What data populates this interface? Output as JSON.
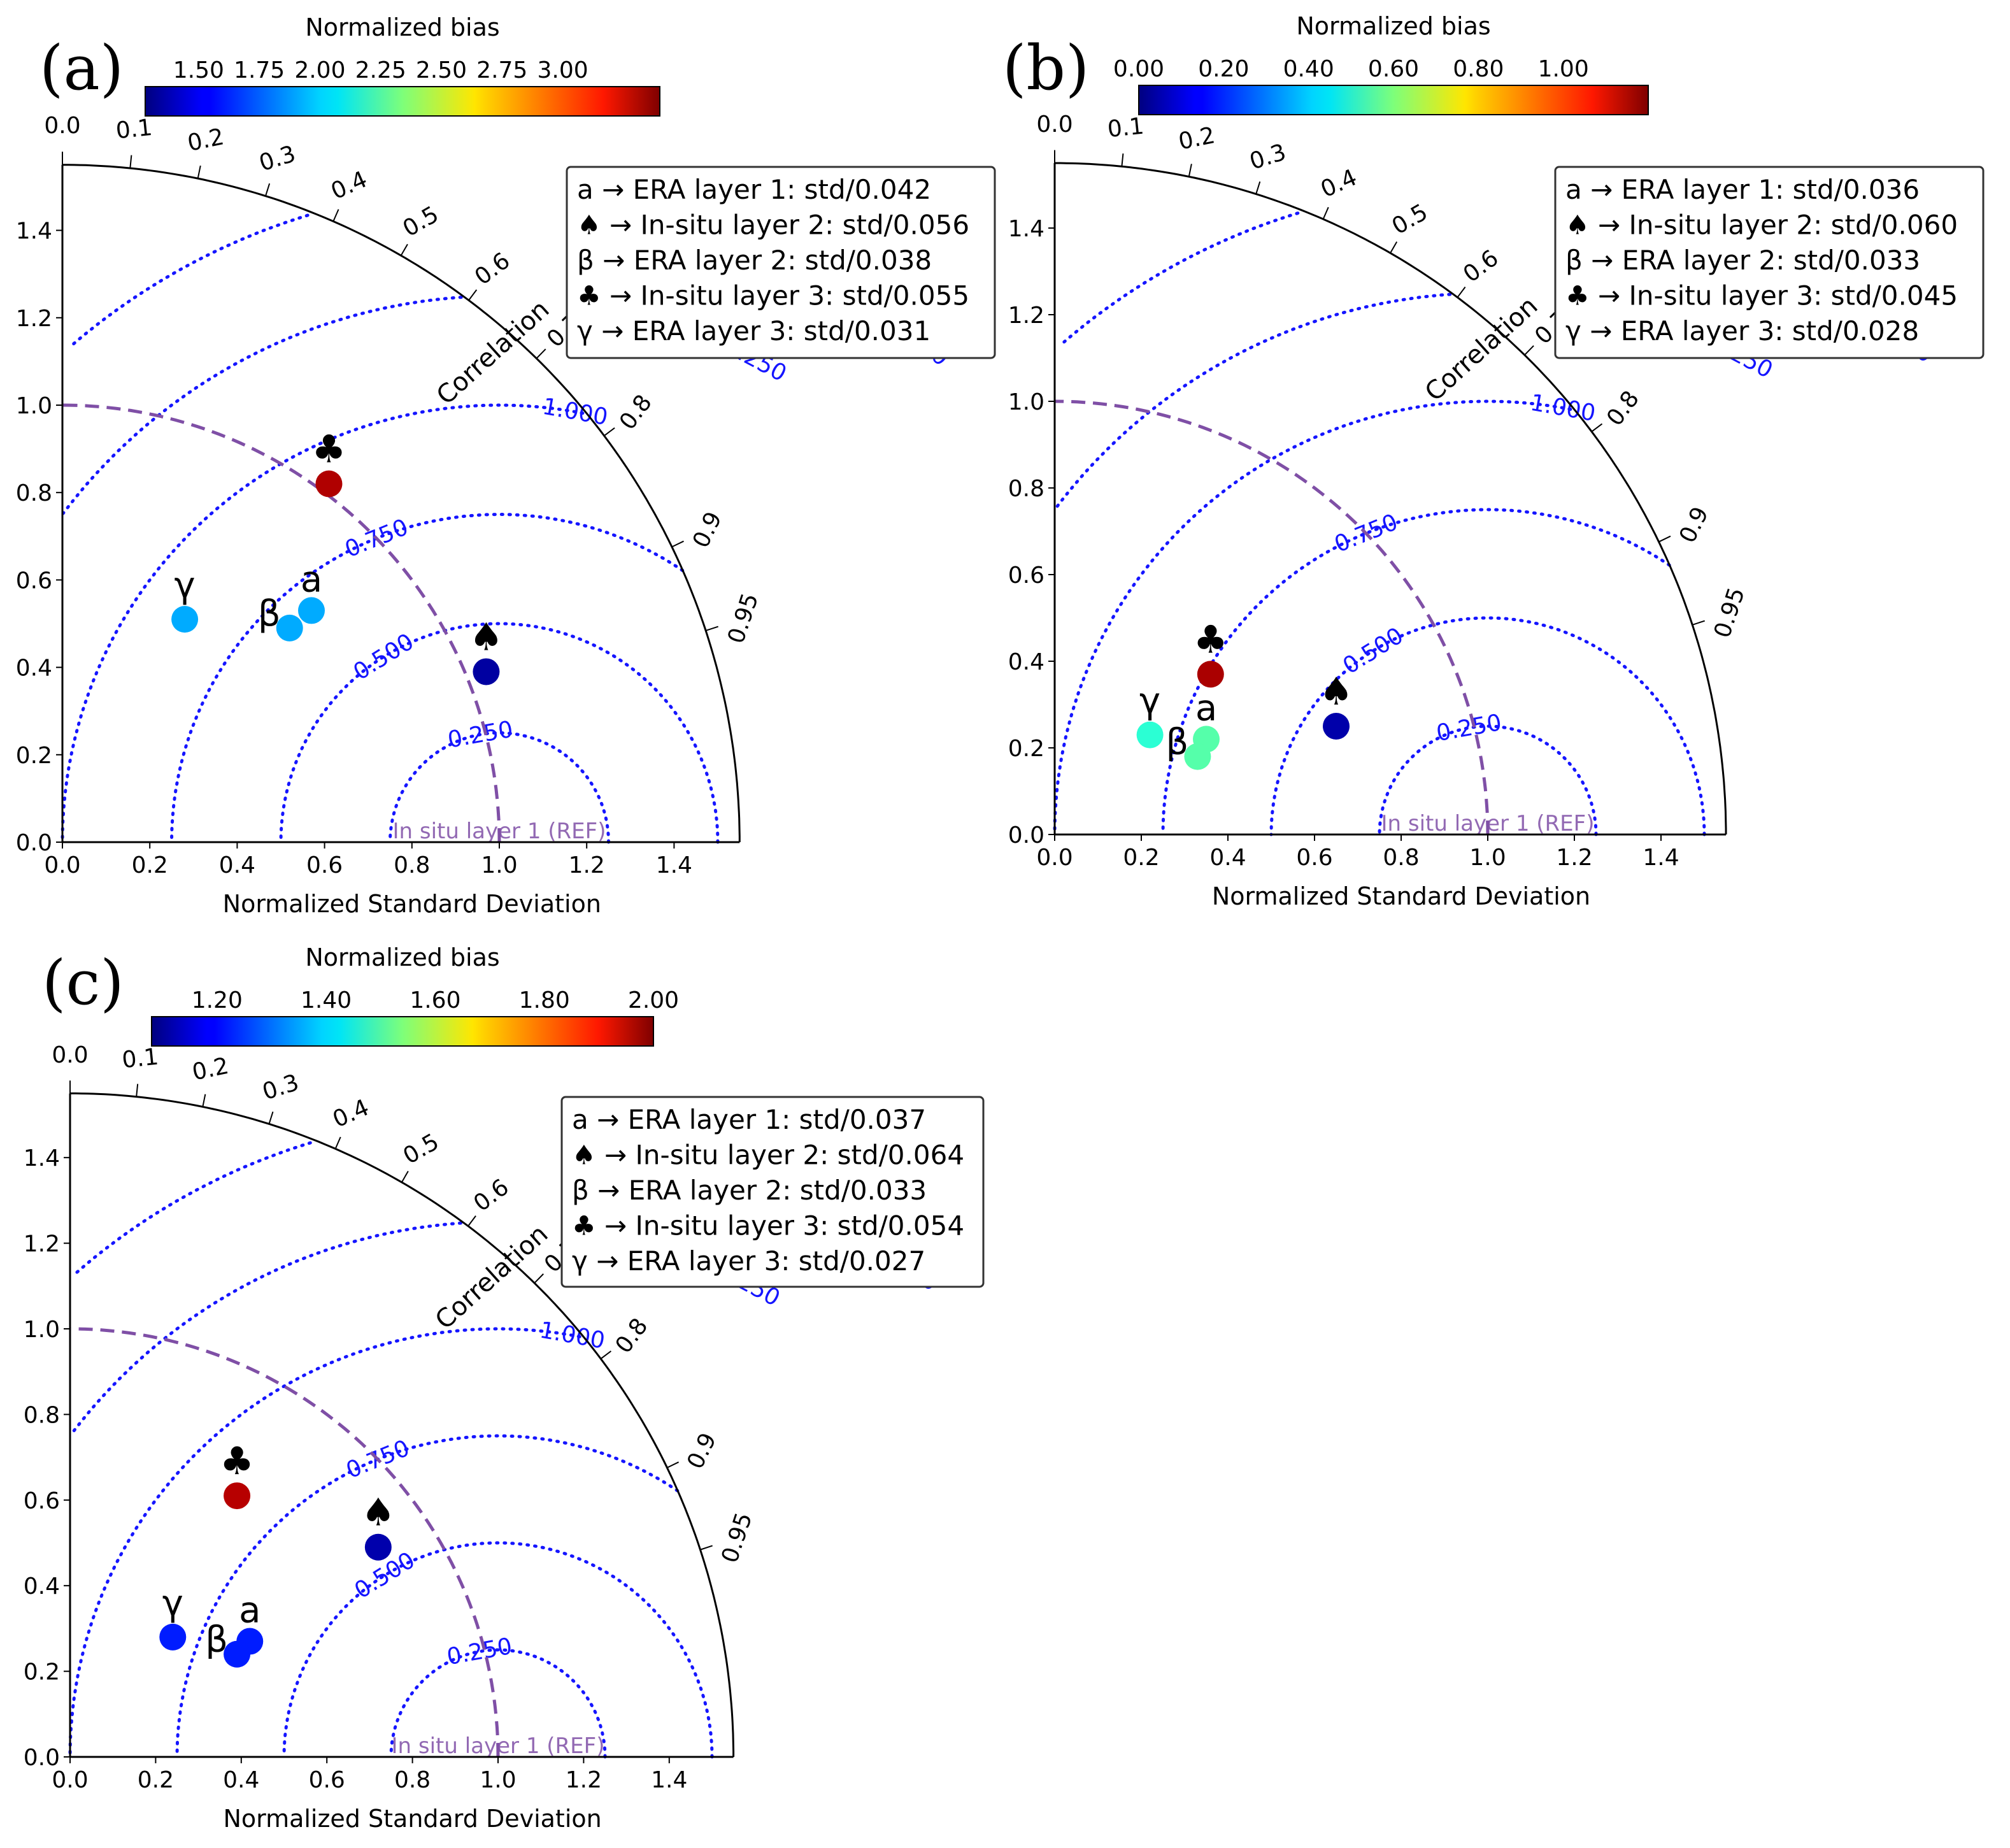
{
  "colors": {
    "rms": "#1515ff",
    "ref": "#7f4fa6",
    "frame": "#000000"
  },
  "chart_data": [
    {
      "type": "taylor",
      "panel_label": "(a)",
      "colorbar": {
        "title": "Normalized bias",
        "min": 1.28,
        "max": 3.4,
        "ticks": [
          "1.50",
          "1.75",
          "2.00",
          "2.25",
          "2.50",
          "2.75",
          "3.00"
        ]
      },
      "xlabel": "Normalized Standard Deviation",
      "corr_label": "Correlation",
      "ref_label": "In situ layer 1 (REF)",
      "std_max": 1.55,
      "std_ticks": [
        "0.0",
        "0.2",
        "0.4",
        "0.6",
        "0.8",
        "1.0",
        "1.2",
        "1.4"
      ],
      "corr_ticks": [
        "0.0",
        "0.1",
        "0.2",
        "0.3",
        "0.4",
        "0.5",
        "0.6",
        "0.7",
        "0.8",
        "0.9",
        "0.95"
      ],
      "rms_levels": [
        0.25,
        0.5,
        0.75,
        1.0,
        1.25,
        1.5
      ],
      "rms_labels": [
        "0.250",
        "0.500",
        "0.750",
        "1.000",
        "1.250",
        "1.500"
      ],
      "legend": [
        "a → ERA layer 1: std/0.042",
        "♠ → In-situ layer 2: std/0.056",
        "β → ERA layer 2: std/0.038",
        "♣ → In-situ layer 3: std/0.055",
        "γ → ERA layer 3: std/0.031"
      ],
      "points": [
        {
          "label": "a",
          "x": 0.57,
          "y": 0.53,
          "bias": 1.9
        },
        {
          "label": "β",
          "x": 0.52,
          "y": 0.49,
          "bias": 1.9
        },
        {
          "label": "γ",
          "x": 0.28,
          "y": 0.51,
          "bias": 1.9
        },
        {
          "label": "♣",
          "x": 0.61,
          "y": 0.82,
          "bias": 3.3
        },
        {
          "label": "♠",
          "x": 0.97,
          "y": 0.39,
          "bias": 1.35
        }
      ]
    },
    {
      "type": "taylor",
      "panel_label": "(b)",
      "colorbar": {
        "title": "Normalized bias",
        "min": 0.0,
        "max": 1.2,
        "ticks": [
          "0.00",
          "0.20",
          "0.40",
          "0.60",
          "0.80",
          "1.00"
        ]
      },
      "xlabel": "Normalized Standard Deviation",
      "corr_label": "Correlation",
      "ref_label": "In situ layer 1 (REF)",
      "std_max": 1.55,
      "std_ticks": [
        "0.0",
        "0.2",
        "0.4",
        "0.6",
        "0.8",
        "1.0",
        "1.2",
        "1.4"
      ],
      "corr_ticks": [
        "0.0",
        "0.1",
        "0.2",
        "0.3",
        "0.4",
        "0.5",
        "0.6",
        "0.7",
        "0.8",
        "0.9",
        "0.95"
      ],
      "rms_levels": [
        0.25,
        0.5,
        0.75,
        1.0,
        1.25,
        1.5
      ],
      "rms_labels": [
        "0.250",
        "0.500",
        "0.750",
        "1.000",
        "1.250",
        "1.500"
      ],
      "legend": [
        "a → ERA layer 1: std/0.036",
        "♠ → In-situ layer 2: std/0.060",
        "β → ERA layer 2: std/0.033",
        "♣ → In-situ layer 3: std/0.045",
        "γ → ERA layer 3: std/0.028"
      ],
      "points": [
        {
          "label": "a",
          "x": 0.35,
          "y": 0.22,
          "bias": 0.55
        },
        {
          "label": "β",
          "x": 0.33,
          "y": 0.18,
          "bias": 0.55
        },
        {
          "label": "γ",
          "x": 0.22,
          "y": 0.23,
          "bias": 0.5
        },
        {
          "label": "♣",
          "x": 0.36,
          "y": 0.37,
          "bias": 1.15
        },
        {
          "label": "♠",
          "x": 0.65,
          "y": 0.25,
          "bias": 0.05
        }
      ]
    },
    {
      "type": "taylor",
      "panel_label": "(c)",
      "colorbar": {
        "title": "Normalized bias",
        "min": 1.08,
        "max": 2.0,
        "ticks": [
          "1.20",
          "1.40",
          "1.60",
          "1.80",
          "2.00"
        ]
      },
      "xlabel": "Normalized Standard Deviation",
      "corr_label": "Correlation",
      "ref_label": "In situ layer 1 (REF)",
      "std_max": 1.55,
      "std_ticks": [
        "0.0",
        "0.2",
        "0.4",
        "0.6",
        "0.8",
        "1.0",
        "1.2",
        "1.4"
      ],
      "corr_ticks": [
        "0.0",
        "0.1",
        "0.2",
        "0.3",
        "0.4",
        "0.5",
        "0.6",
        "0.7",
        "0.8",
        "0.9",
        "0.95"
      ],
      "rms_levels": [
        0.25,
        0.5,
        0.75,
        1.0,
        1.25,
        1.5
      ],
      "rms_labels": [
        "0.250",
        "0.500",
        "0.750",
        "1.000",
        "1.250",
        "1.500"
      ],
      "legend": [
        "a → ERA layer 1: std/0.037",
        "♠ → In-situ layer 2: std/0.064",
        "β → ERA layer 2: std/0.033",
        "♣ → In-situ layer 3: std/0.054",
        "γ → ERA layer 3: std/0.027"
      ],
      "points": [
        {
          "label": "a",
          "x": 0.42,
          "y": 0.27,
          "bias": 1.22
        },
        {
          "label": "β",
          "x": 0.39,
          "y": 0.24,
          "bias": 1.22
        },
        {
          "label": "γ",
          "x": 0.24,
          "y": 0.28,
          "bias": 1.22
        },
        {
          "label": "♣",
          "x": 0.39,
          "y": 0.61,
          "bias": 1.95
        },
        {
          "label": "♠",
          "x": 0.72,
          "y": 0.49,
          "bias": 1.12
        }
      ]
    }
  ]
}
